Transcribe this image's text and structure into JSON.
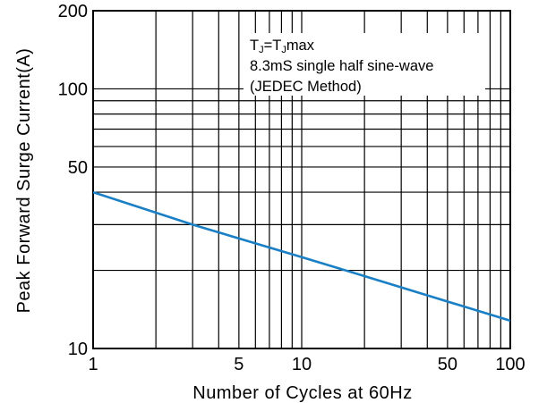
{
  "chart_data": {
    "type": "line",
    "title": "",
    "xlabel": "Number of Cycles at 60Hz",
    "ylabel": "Peak Forward Surge Current(A)",
    "xscale": "log",
    "yscale": "log",
    "xlim": [
      1,
      100
    ],
    "ylim": [
      10,
      200
    ],
    "x_tick_labels": [
      "1",
      "5",
      "10",
      "50",
      "100"
    ],
    "x_tick_values": [
      1,
      5,
      10,
      50,
      100
    ],
    "y_tick_labels": [
      "10",
      "50",
      "100",
      "200"
    ],
    "y_tick_values": [
      10,
      50,
      100,
      200
    ],
    "grid": true,
    "series": [
      {
        "color": "#1a7fc4",
        "x": [
          1,
          3,
          10,
          20,
          100
        ],
        "y": [
          40,
          30,
          22.5,
          19,
          12.8
        ]
      }
    ],
    "annotation": {
      "line1_main": "T",
      "line1_sub1": "J",
      "line1_eq": "=T",
      "line1_sub2": "J",
      "line1_tail": "max",
      "line2": "8.3mS single half sine-wave",
      "line3": "(JEDEC Method)"
    }
  }
}
